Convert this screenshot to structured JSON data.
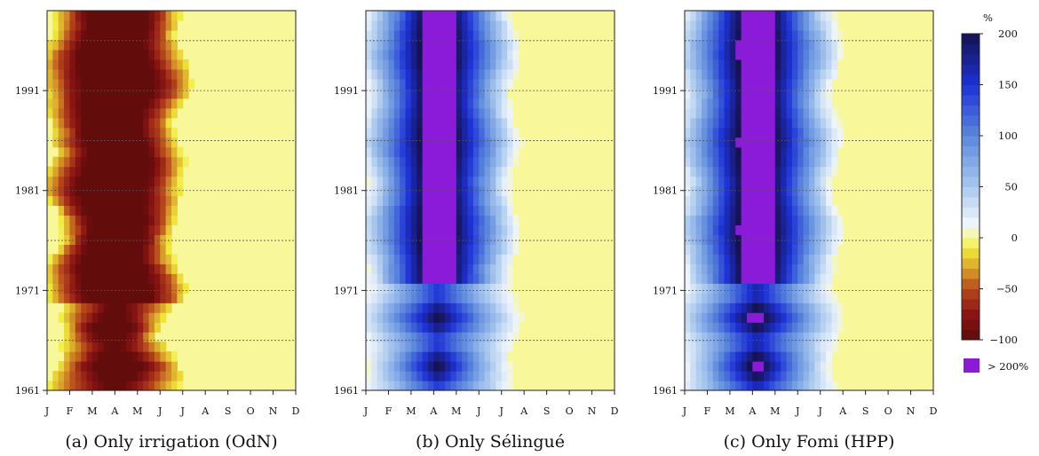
{
  "chart_data": [
    {
      "type": "heatmap",
      "title": "(a) Only irrigation (OdN)",
      "x_categories": [
        "J",
        "F",
        "M",
        "A",
        "M",
        "J",
        "J",
        "A",
        "S",
        "O",
        "N",
        "D"
      ],
      "y_ticks": [
        "1961",
        "1971",
        "1981",
        "1991"
      ],
      "ylim": [
        1961,
        1999
      ],
      "grid": "dotted horizontal every 5 years",
      "pattern": "negative",
      "monthly_extent": {
        "peak_month": "A",
        "core_months": [
          "F",
          "M",
          "A",
          "M"
        ],
        "fringe_months": [
          "J",
          "J"
        ],
        "value_range": [
          -100,
          0
        ]
      }
    },
    {
      "type": "heatmap",
      "title": "(b) Only Sélingué",
      "x_categories": [
        "J",
        "F",
        "M",
        "A",
        "M",
        "J",
        "J",
        "A",
        "S",
        "O",
        "N",
        "D"
      ],
      "y_ticks": [
        "1961",
        "1971",
        "1981",
        "1991"
      ],
      "ylim": [
        1961,
        1999
      ],
      "grid": "dotted horizontal every 5 years",
      "pattern": "positive",
      "monthly_extent": {
        "peak_month": "A",
        "core_months": [
          "M",
          "A",
          "M"
        ],
        "fringe_months": [
          "J",
          "F",
          "J"
        ],
        "value_range": [
          0,
          200
        ]
      }
    },
    {
      "type": "heatmap",
      "title": "(c) Only Fomi (HPP)",
      "x_categories": [
        "J",
        "F",
        "M",
        "A",
        "M",
        "J",
        "J",
        "A",
        "S",
        "O",
        "N",
        "D"
      ],
      "y_ticks": [
        "1961",
        "1971",
        "1981",
        "1991"
      ],
      "ylim": [
        1961,
        1999
      ],
      "grid": "dotted horizontal every 5 years",
      "pattern": "positive",
      "monthly_extent": {
        "peak_month": "A",
        "core_months": [
          "M",
          "A",
          "M",
          "J"
        ],
        "fringe_months": [
          "J",
          "F",
          "J"
        ],
        "value_range": [
          0,
          200
        ]
      }
    }
  ],
  "colorbar": {
    "unit": "%",
    "range": [
      -100,
      200
    ],
    "tick_labels": [
      "200",
      "150",
      "100",
      "50",
      "0",
      "−50",
      "−100"
    ],
    "tick_values": [
      200,
      150,
      100,
      50,
      0,
      -50,
      -100
    ],
    "extra_label": "> 200%",
    "extra_color": "#8c1ad9",
    "stops": [
      {
        "v": -100,
        "c": "#5c0a0a"
      },
      {
        "v": -75,
        "c": "#8a1414"
      },
      {
        "v": -50,
        "c": "#b7471c"
      },
      {
        "v": -30,
        "c": "#d9a12a"
      },
      {
        "v": -10,
        "c": "#f0ec3a"
      },
      {
        "v": 0,
        "c": "#f8f79a"
      },
      {
        "v": 15,
        "c": "#eef4fb"
      },
      {
        "v": 50,
        "c": "#a9c8ee"
      },
      {
        "v": 100,
        "c": "#5b87dc"
      },
      {
        "v": 150,
        "c": "#1d31d6"
      },
      {
        "v": 200,
        "c": "#16124f"
      }
    ]
  },
  "colors": {
    "base_yellow": "#f8f79a",
    "over_200": "#8c1ad9"
  }
}
